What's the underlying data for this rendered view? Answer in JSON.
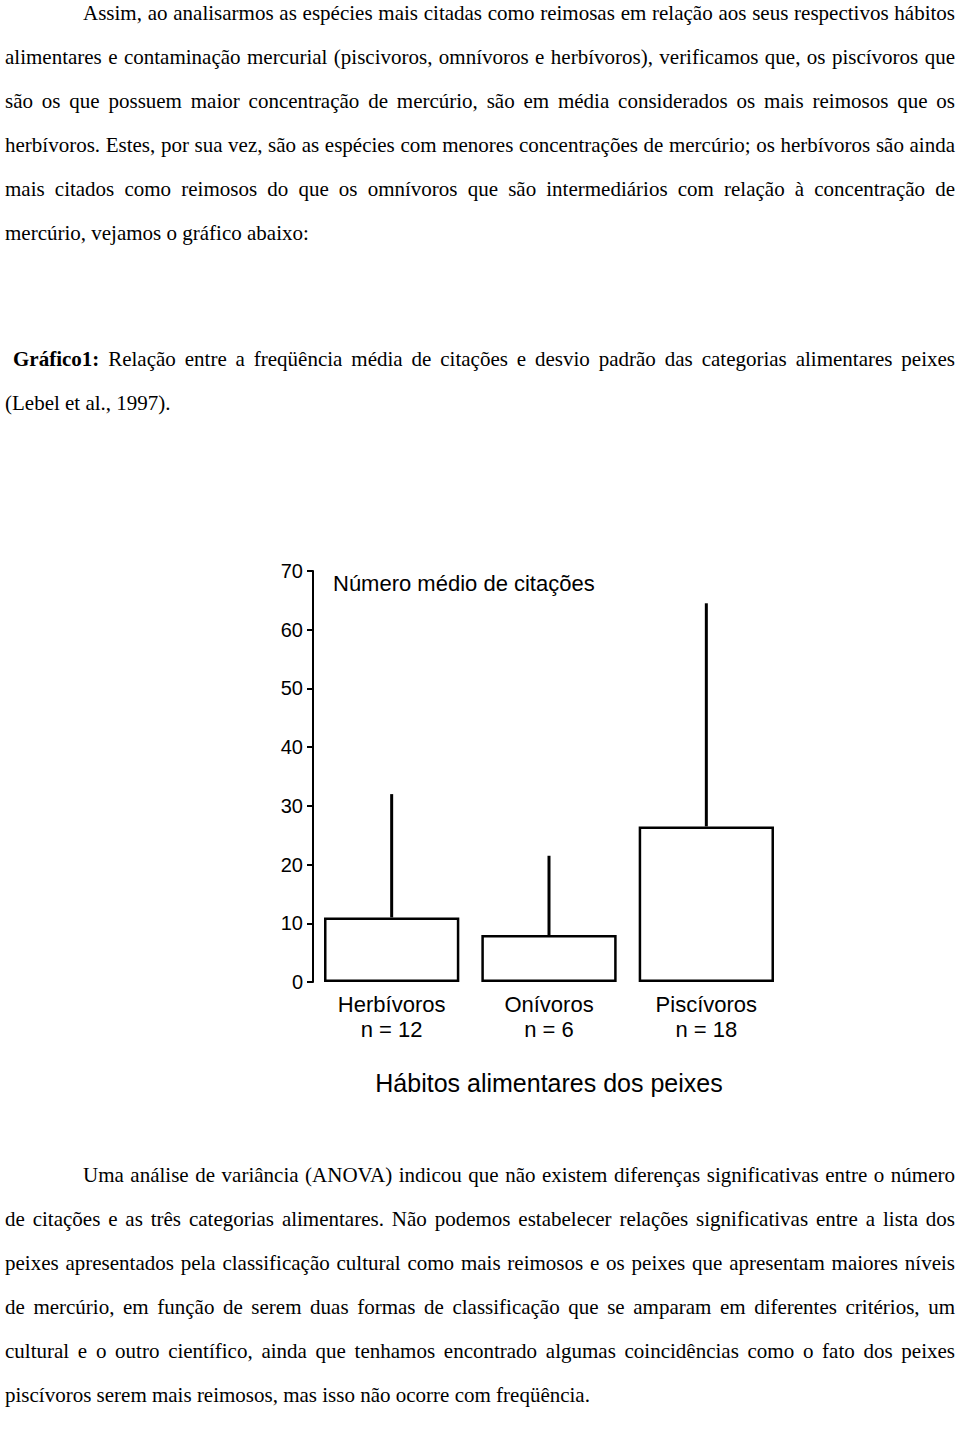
{
  "text_before": "Assim, ao analisarmos as espécies mais citadas como reimosas em relação aos seus respectivos hábitos alimentares e contaminação mercurial (piscivoros, omnívoros e herbívoros), verificamos que, os piscívoros que são os que possuem maior concentração de mercúrio, são em média considerados os mais reimosos que os herbívoros. Estes, por sua vez, são as espécies com menores concentrações de mercúrio; os herbívoros são ainda mais citados como reimosos do que os omnívoros que são intermediários com relação à concentração de mercúrio, vejamos o gráfico abaixo:",
  "caption": {
    "label": "Gráfico1:",
    "text": "Relação entre a freqüência média de citações e desvio padrão das categorias alimentares peixes (Lebel et al., 1997)."
  },
  "chart_data": {
    "type": "bar",
    "title": "Número médio de citações",
    "x_label": "Hábitos alimentares dos peixes",
    "categories": [
      "Herbívoros\nn = 12",
      "Onívoros\nn = 6",
      "Piscívoros\nn = 18"
    ],
    "values": [
      11,
      8,
      26.5
    ],
    "errors": [
      21,
      13.5,
      38
    ],
    "color": "#ffffff",
    "ylim": [
      0,
      70
    ],
    "yticks": [
      0,
      10,
      20,
      30,
      40,
      50,
      60,
      70
    ],
    "grid": false
  },
  "text_after": "Uma análise de variância (ANOVA) indicou que não existem diferenças significativas entre o número de citações e as três categorias alimentares. Não podemos estabelecer relações significativas entre a lista dos peixes apresentados pela classificação cultural como mais reimosos e os peixes que apresentam maiores níveis de mercúrio, em função de serem duas formas de classificação que se amparam em diferentes critérios, um cultural e o outro científico, ainda que tenhamos encontrado algumas coincidências como o fato dos peixes piscívoros serem mais reimosos, mas isso não ocorre com freqüência."
}
